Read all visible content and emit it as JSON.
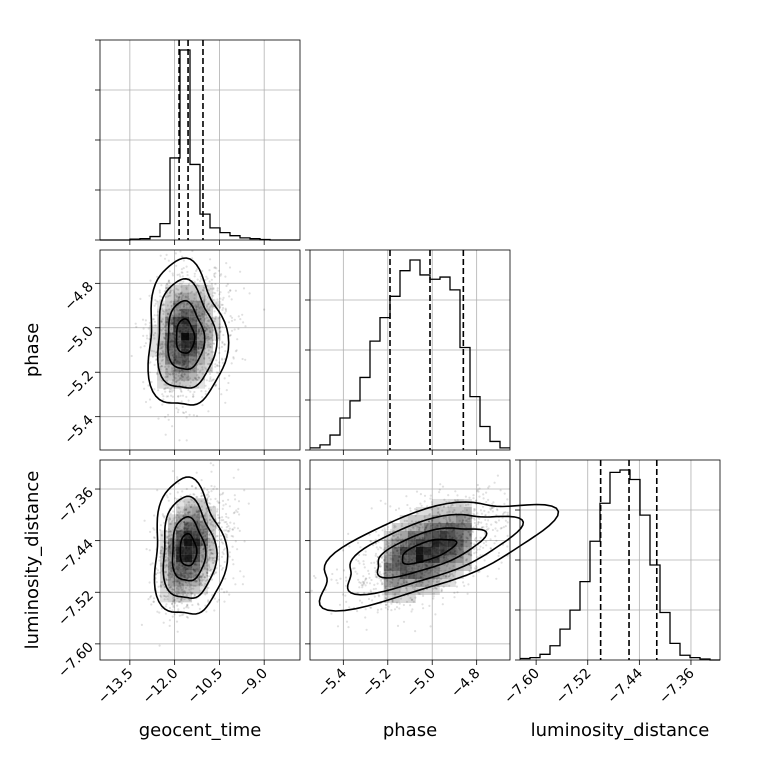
{
  "chart_data": {
    "type": "corner",
    "parameters": [
      "geocent_time",
      "phase",
      "luminosity_distance"
    ],
    "axis_labels": {
      "x": [
        "geocent_time",
        "phase",
        "luminosity_distance"
      ],
      "y": [
        "phase",
        "luminosity_distance"
      ]
    },
    "ranges": {
      "geocent_time": [
        -14.5,
        -7.8
      ],
      "phase": [
        -5.55,
        -4.65
      ],
      "luminosity_distance": [
        -7.625,
        -7.315
      ]
    },
    "ticks": {
      "geocent_time": [
        -13.5,
        -12.0,
        -10.5,
        -9.0
      ],
      "phase": [
        -5.4,
        -5.2,
        -5.0,
        -4.8
      ],
      "luminosity_distance": [
        -7.6,
        -7.52,
        -7.44,
        -7.36
      ]
    },
    "tick_labels": {
      "geocent_time": [
        "−13.5",
        "−12.0",
        "−10.5",
        "−9.0"
      ],
      "phase": [
        "−5.4",
        "−5.2",
        "−5.0",
        "−4.8"
      ],
      "luminosity_distance": [
        "−7.60",
        "−7.52",
        "−7.44",
        "−7.36"
      ]
    },
    "histograms": {
      "geocent_time": {
        "bin_edges": [
          -14.5,
          -14.165,
          -13.83,
          -13.495,
          -13.16,
          -12.825,
          -12.49,
          -12.155,
          -11.82,
          -11.485,
          -11.15,
          -10.815,
          -10.48,
          -10.145,
          -9.81,
          -9.475,
          -9.14,
          -8.805,
          -8.47,
          -8.135,
          -7.8
        ],
        "counts": [
          0,
          0,
          0,
          2,
          3,
          8,
          38,
          190,
          440,
          175,
          60,
          28,
          17,
          10,
          5,
          3,
          1,
          0,
          0,
          0
        ]
      },
      "phase": {
        "bin_edges": [
          -5.55,
          -5.505,
          -5.46,
          -5.415,
          -5.37,
          -5.325,
          -5.28,
          -5.235,
          -5.19,
          -5.145,
          -5.1,
          -5.055,
          -5.01,
          -4.965,
          -4.92,
          -4.875,
          -4.83,
          -4.785,
          -4.74,
          -4.695,
          -4.65
        ],
        "counts": [
          5,
          12,
          35,
          75,
          115,
          170,
          255,
          310,
          360,
          420,
          445,
          410,
          400,
          405,
          375,
          240,
          125,
          55,
          20,
          5
        ]
      },
      "luminosity_distance": {
        "bin_edges": [
          -7.625,
          -7.6095,
          -7.594,
          -7.5785,
          -7.563,
          -7.5475,
          -7.532,
          -7.5165,
          -7.501,
          -7.4855,
          -7.47,
          -7.4545,
          -7.439,
          -7.4235,
          -7.408,
          -7.3925,
          -7.377,
          -7.3615,
          -7.346,
          -7.3305,
          -7.315
        ],
        "counts": [
          3,
          5,
          12,
          30,
          65,
          105,
          165,
          250,
          330,
          395,
          400,
          380,
          305,
          200,
          100,
          35,
          10,
          5,
          2,
          0
        ]
      }
    },
    "quantiles": {
      "geocent_time": [
        -11.85,
        -11.55,
        -11.05
      ],
      "phase": [
        -5.19,
        -5.01,
        -4.86
      ],
      "luminosity_distance": [
        -7.5,
        -7.456,
        -7.413
      ]
    },
    "scatter_2d": {
      "phase_vs_geocent_time": {
        "center": [
          -11.65,
          -5.04
        ],
        "spread": [
          0.55,
          0.14
        ],
        "correlation": 0.15
      },
      "luminosity_distance_vs_geocent_time": {
        "center": [
          -11.55,
          -7.455
        ],
        "spread": [
          0.5,
          0.045
        ],
        "correlation": 0.3
      },
      "luminosity_distance_vs_phase": {
        "center": [
          -5.02,
          -7.456
        ],
        "spread": [
          0.17,
          0.042
        ],
        "correlation": 0.55
      }
    },
    "contour_levels": [
      "0.5",
      "1.0",
      "1.5",
      "2.0"
    ],
    "grid": true
  }
}
